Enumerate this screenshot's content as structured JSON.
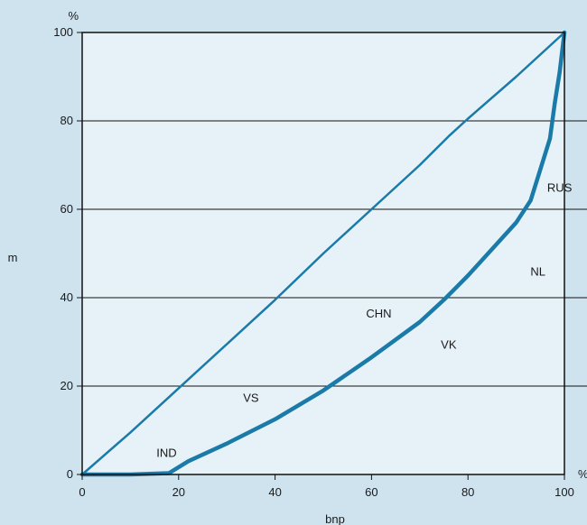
{
  "chart_data": {
    "type": "line",
    "title": "",
    "xlabel": "bnp",
    "ylabel": "m",
    "x_unit": "%",
    "y_unit": "%",
    "xlim": [
      0,
      100
    ],
    "ylim": [
      0,
      100
    ],
    "x_ticks": [
      0,
      20,
      40,
      60,
      80,
      100
    ],
    "y_ticks": [
      0,
      20,
      40,
      60,
      80,
      100
    ],
    "grid": "horizontal",
    "colors": {
      "line": "#1a7aa8",
      "plot_bg": "#e6f1f8",
      "page_bg": "#cfe3ef"
    },
    "series": [
      {
        "x": [
          0,
          10,
          20,
          30,
          40,
          50,
          60,
          70,
          76,
          80,
          90,
          100
        ],
        "y": [
          0,
          9.5,
          19.5,
          29.5,
          39.5,
          50,
          60,
          70,
          76.5,
          80.5,
          90,
          100
        ]
      },
      {
        "x": [
          0,
          10,
          18,
          22,
          30,
          40,
          50,
          60,
          70,
          75,
          80,
          85,
          90,
          93,
          95,
          97,
          98,
          99,
          100
        ],
        "y": [
          0,
          0,
          0.3,
          3,
          7,
          12.5,
          19,
          26.5,
          34.5,
          39.5,
          45,
          51,
          57,
          62,
          69,
          76,
          84,
          91,
          100
        ]
      }
    ],
    "annotations": [
      {
        "text": "IND",
        "x": 17.5,
        "y": 5
      },
      {
        "text": "VS",
        "x": 35,
        "y": 17.5
      },
      {
        "text": "CHN",
        "x": 61.5,
        "y": 36.5
      },
      {
        "text": "VK",
        "x": 76,
        "y": 29.5
      },
      {
        "text": "NL",
        "x": 94.5,
        "y": 46
      },
      {
        "text": "RUS",
        "x": 99,
        "y": 65
      }
    ]
  }
}
